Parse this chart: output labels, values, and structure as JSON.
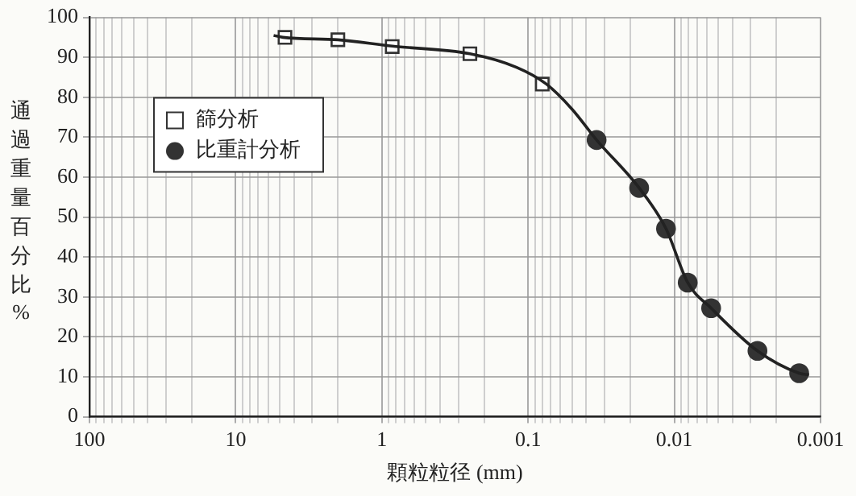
{
  "chart_data": {
    "type": "scatter",
    "xlabel": "顆粒粒径 (mm)",
    "ylabel": "通過重量百分比 %",
    "log": "x",
    "xlim": [
      100,
      0.001
    ],
    "ylim": [
      0,
      100
    ],
    "xticks": [
      100,
      {
        "value": 90,
        "label": null
      },
      {
        "value": 80,
        "label": null
      },
      {
        "value": 70,
        "label": null
      },
      {
        "value": 60,
        "label": null
      },
      {
        "value": 50,
        "label": null
      },
      {
        "value": 40,
        "label": null
      },
      {
        "value": 30,
        "label": null
      },
      {
        "value": 20,
        "label": null
      },
      10,
      {
        "value": 9,
        "label": null
      },
      {
        "value": 8,
        "label": null
      },
      {
        "value": 7,
        "label": null
      },
      {
        "value": 6,
        "label": null
      },
      {
        "value": 5,
        "label": null
      },
      {
        "value": 4,
        "label": null
      },
      {
        "value": 3,
        "label": null
      },
      {
        "value": 2,
        "label": null
      },
      1,
      {
        "value": 0.9,
        "label": null
      },
      {
        "value": 0.8,
        "label": null
      },
      {
        "value": 0.7,
        "label": null
      },
      {
        "value": 0.6,
        "label": null
      },
      {
        "value": 0.5,
        "label": null
      },
      {
        "value": 0.4,
        "label": null
      },
      {
        "value": 0.3,
        "label": null
      },
      {
        "value": 0.2,
        "label": null
      },
      0.1,
      {
        "value": 0.09,
        "label": null
      },
      {
        "value": 0.08,
        "label": null
      },
      {
        "value": 0.07,
        "label": null
      },
      {
        "value": 0.06,
        "label": null
      },
      {
        "value": 0.05,
        "label": null
      },
      {
        "value": 0.04,
        "label": null
      },
      {
        "value": 0.03,
        "label": null
      },
      {
        "value": 0.02,
        "label": null
      },
      0.01,
      {
        "value": 0.009,
        "label": null
      },
      {
        "value": 0.008,
        "label": null
      },
      {
        "value": 0.007,
        "label": null
      },
      {
        "value": 0.006,
        "label": null
      },
      {
        "value": 0.005,
        "label": null
      },
      {
        "value": 0.004,
        "label": null
      },
      {
        "value": 0.003,
        "label": null
      },
      {
        "value": 0.002,
        "label": null
      },
      0.001
    ],
    "yticks": [
      0,
      10,
      20,
      30,
      40,
      50,
      60,
      70,
      80,
      90,
      100
    ],
    "grid": true,
    "legend": "top left",
    "series": [
      {
        "type": "line",
        "color": "#222222",
        "marker": "none",
        "line_style": "solid",
        "x": [
          5.5,
          4.75,
          2,
          0.85,
          0.25,
          0.12,
          0.075,
          0.05,
          0.034,
          0.0174,
          0.0114,
          0.0081,
          0.0056,
          0.0027,
          0.0014,
          0.0012
        ],
        "values": [
          95.5,
          95,
          94.4,
          92.8,
          90.9,
          87.5,
          83.3,
          77,
          69.3,
          57.3,
          47.1,
          33.6,
          27.2,
          16.5,
          10.9,
          10.5
        ]
      },
      {
        "name": "篩分析",
        "color": "#333333",
        "marker": "square",
        "x": [
          4.6,
          2,
          0.85,
          0.25,
          0.08
        ],
        "values": [
          95,
          94.4,
          92.7,
          90.9,
          83.3
        ]
      },
      {
        "name": "比重計分析",
        "color": "#333333",
        "marker": "circle",
        "x": [
          0.034,
          0.0174,
          0.0114,
          0.0081,
          0.0056,
          0.0027,
          0.0014
        ],
        "values": [
          69.3,
          57.3,
          47.1,
          33.6,
          27.2,
          16.5,
          10.9
        ]
      }
    ]
  }
}
